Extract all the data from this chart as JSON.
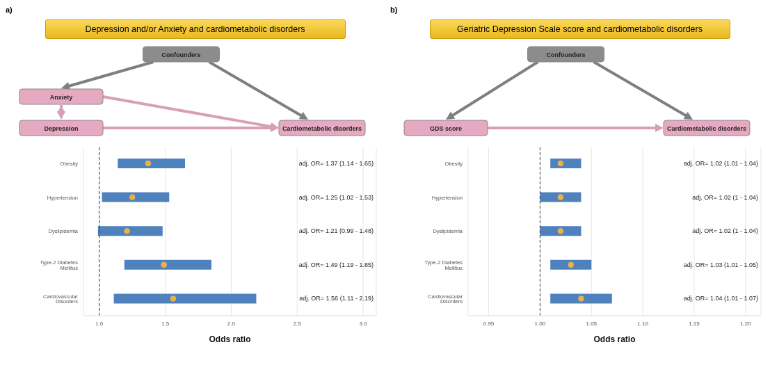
{
  "chart_data": [
    {
      "type": "bar",
      "orientation": "horizontal",
      "title": "Depression and/or Anxiety and cardiometabolic disorders",
      "xlabel": "Odds ratio",
      "annotations": [
        "a)",
        "Confounders",
        "Anxiety",
        "Depression",
        "Cardiometabolic disorders"
      ],
      "categories": [
        "Obesity",
        "Hypertension",
        "Dyslipidemia",
        "Type-2 Diabetes Mellitus",
        "Cardiovascular Disorders"
      ],
      "series": [
        {
          "color": "#4f81bd",
          "base": [
            1.14,
            1.02,
            0.99,
            1.19,
            1.11
          ],
          "values": [
            0.51,
            0.51,
            0.49,
            0.66,
            1.08
          ],
          "value_labels": [
            "adj. OR= 1.37 (1.14 - 1.65)",
            "adj. OR= 1.25 (1.02 - 1.53)",
            "adj. OR= 1.21 (0.99 - 1.48)",
            "adj. OR= 1.49 (1.19 - 1.85)",
            "adj. OR= 1.56 (1.11 - 2.19)"
          ]
        },
        {
          "type": "scatter",
          "color": "#f2b134",
          "values": [
            1.37,
            1.25,
            1.21,
            1.49,
            1.56
          ]
        }
      ],
      "marker": "circle",
      "xlim": [
        0.88,
        3.1
      ],
      "xticks": [
        {
          "value": 1,
          "label": "1.0"
        },
        1.5,
        {
          "value": 2,
          "label": "2.0"
        },
        2.5,
        {
          "value": 3,
          "label": "3.0"
        }
      ],
      "grid": "x",
      "ref_lines": [
        {
          "axis": "x",
          "value": 1,
          "line_style": "dashed",
          "color": "#333333"
        }
      ]
    },
    {
      "type": "bar",
      "orientation": "horizontal",
      "title": "Geriatric Depression Scale score and cardiometabolic disorders",
      "xlabel": "Odds ratio",
      "annotations": [
        "b)",
        "Confounders",
        "GDS score",
        "Cardiometabolic disorders"
      ],
      "categories": [
        "Obesity",
        "Hypertension",
        "Dyslipidemia",
        "Type-2 Diabetes Mellitus",
        "Cardiovascular Disorders"
      ],
      "series": [
        {
          "color": "#4f81bd",
          "base": [
            1.01,
            1.0,
            1.0,
            1.01,
            1.01
          ],
          "values": [
            0.03,
            0.04,
            0.04,
            0.04,
            0.06
          ],
          "value_labels": [
            "adj. OR= 1.02 (1.01 - 1.04)",
            "adj. OR= 1.02 (1 - 1.04)",
            "adj. OR= 1.02 (1 - 1.04)",
            "adj. OR= 1.03 (1.01 - 1.05)",
            "adj. OR= 1.04 (1.01 - 1.07)"
          ]
        },
        {
          "type": "scatter",
          "color": "#f2b134",
          "values": [
            1.02,
            1.02,
            1.02,
            1.03,
            1.04
          ]
        }
      ],
      "marker": "circle",
      "xlim": [
        0.93,
        1.215
      ],
      "xticks": [
        0.95,
        {
          "value": 1,
          "label": "1.00"
        },
        1.05,
        {
          "value": 1.1,
          "label": "1.10"
        },
        1.15,
        {
          "value": 1.2,
          "label": "1.20"
        }
      ],
      "grid": "x",
      "ref_lines": [
        {
          "axis": "x",
          "value": 1,
          "line_style": "dashed",
          "color": "#333333"
        }
      ]
    }
  ]
}
